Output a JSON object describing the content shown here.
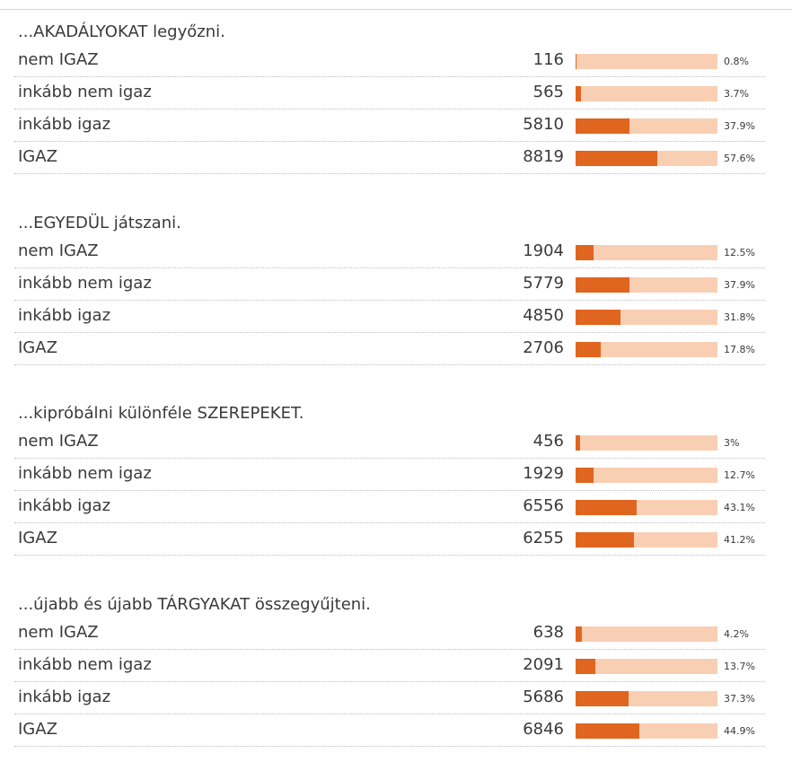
{
  "groups": [
    {
      "title": "...AKADÁLYOKAT legyőzni.",
      "rows": [
        {
          "label": "nem IGAZ",
          "count": 116,
          "percent": 0.8,
          "percent_label": "0.8%"
        },
        {
          "label": "inkább nem igaz",
          "count": 565,
          "percent": 3.7,
          "percent_label": "3.7%"
        },
        {
          "label": "inkább igaz",
          "count": 5810,
          "percent": 37.9,
          "percent_label": "37.9%"
        },
        {
          "label": "IGAZ",
          "count": 8819,
          "percent": 57.6,
          "percent_label": "57.6%"
        }
      ]
    },
    {
      "title": "...EGYEDÜL játszani.",
      "rows": [
        {
          "label": "nem IGAZ",
          "count": 1904,
          "percent": 12.5,
          "percent_label": "12.5%"
        },
        {
          "label": "inkább nem igaz",
          "count": 5779,
          "percent": 37.9,
          "percent_label": "37.9%"
        },
        {
          "label": "inkább igaz",
          "count": 4850,
          "percent": 31.8,
          "percent_label": "31.8%"
        },
        {
          "label": "IGAZ",
          "count": 2706,
          "percent": 17.8,
          "percent_label": "17.8%"
        }
      ]
    },
    {
      "title": "...kipróbálni különféle SZEREPEKET.",
      "rows": [
        {
          "label": "nem IGAZ",
          "count": 456,
          "percent": 3,
          "percent_label": "3%"
        },
        {
          "label": "inkább nem igaz",
          "count": 1929,
          "percent": 12.7,
          "percent_label": "12.7%"
        },
        {
          "label": "inkább igaz",
          "count": 6556,
          "percent": 43.1,
          "percent_label": "43.1%"
        },
        {
          "label": "IGAZ",
          "count": 6255,
          "percent": 41.2,
          "percent_label": "41.2%"
        }
      ]
    },
    {
      "title": "...újabb és újabb TÁRGYAKAT összegyűjteni.",
      "rows": [
        {
          "label": "nem IGAZ",
          "count": 638,
          "percent": 4.2,
          "percent_label": "4.2%"
        },
        {
          "label": "inkább nem igaz",
          "count": 2091,
          "percent": 13.7,
          "percent_label": "13.7%"
        },
        {
          "label": "inkább igaz",
          "count": 5686,
          "percent": 37.3,
          "percent_label": "37.3%"
        },
        {
          "label": "IGAZ",
          "count": 6846,
          "percent": 44.9,
          "percent_label": "44.9%"
        }
      ]
    }
  ]
}
